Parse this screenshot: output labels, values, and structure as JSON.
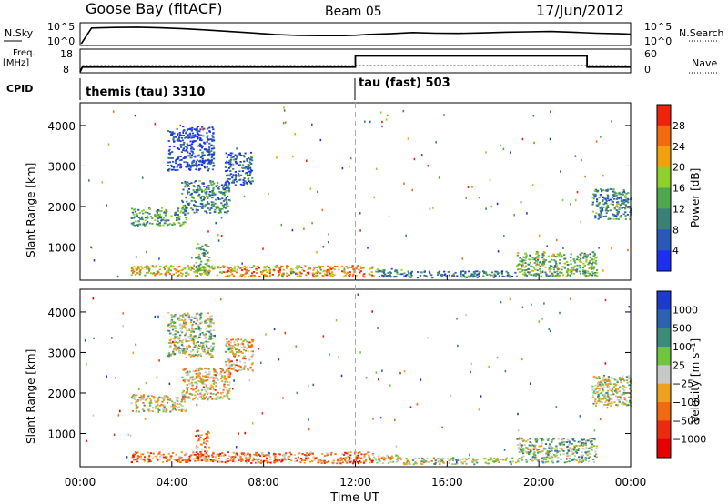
{
  "header": {
    "station": "Goose Bay (fitACF)",
    "beam": "Beam 05",
    "date": "17/Jun/2012"
  },
  "colors": {
    "data_trace": "#000000",
    "cursor_line": "#aaaaaa",
    "speck_grey": "#bfbfbf"
  },
  "chart_data": [
    {
      "type": "line",
      "panel": "noise",
      "ylabel_left": "N.Sky",
      "ylabel_right": "N.Search",
      "left_ticks": [
        "10^5",
        "10^0"
      ],
      "right_ticks": [
        "10^5",
        "10^0"
      ],
      "x_hours": [
        0.05,
        0.5,
        1.5,
        2.5,
        3.5,
        4.5,
        5.5,
        6.5,
        7.5,
        8.5,
        9.5,
        10.5,
        11.5,
        12.0,
        12.5,
        13.5,
        14.5,
        15.5,
        16.5,
        17.5,
        18.5,
        19.5,
        20.5,
        21.5,
        22.5,
        23.5,
        24.0
      ],
      "n_sky_level": [
        0.0,
        0.82,
        0.85,
        0.86,
        0.83,
        0.78,
        0.72,
        0.64,
        0.56,
        0.48,
        0.43,
        0.42,
        0.42,
        0.44,
        0.48,
        0.52,
        0.58,
        0.55,
        0.54,
        0.56,
        0.6,
        0.62,
        0.64,
        0.6,
        0.55,
        0.52,
        0.5
      ]
    },
    {
      "type": "line",
      "panel": "frequency",
      "ylabel_left": "Freq. [MHz]",
      "ylabel_right": "Nave",
      "left_ticks": [
        "18",
        "8"
      ],
      "right_ticks": [
        "60",
        "0"
      ],
      "x_hours": [
        0,
        0.1,
        12.0,
        12.0,
        22.1,
        22.1,
        24
      ],
      "freq_mhz": [
        8,
        10.2,
        10.2,
        15.3,
        15.3,
        10.2,
        10.2
      ],
      "nave_level": 0.28
    },
    {
      "type": "table",
      "panel": "cpid",
      "label": "CPID",
      "segments": [
        {
          "start_hour": 0,
          "text": "themis (tau) 3310"
        },
        {
          "start_hour": 12,
          "text": "tau (fast) 503"
        }
      ]
    },
    {
      "type": "heatmap",
      "panel": "power",
      "ylabel": "Slant Range [km]",
      "y_ticks": [
        1000,
        2000,
        3000,
        4000
      ],
      "ylim": [
        180,
        4560
      ],
      "xlim_hours": [
        0,
        24
      ],
      "colorbar_title": "Power [dB]",
      "colorbar_ticks": [
        "4",
        "8",
        "12",
        "16",
        "20",
        "24",
        "28"
      ],
      "colorbar_colors": [
        "#1c2ff0",
        "#2a58b8",
        "#3a7f78",
        "#4fa84e",
        "#8fd12a",
        "#f1a10c",
        "#f26b0d",
        "#f0220a"
      ],
      "echo_regions": [
        {
          "x0": 2.2,
          "x1": 6.2,
          "y0": 310,
          "y1": 560,
          "value": 0.62
        },
        {
          "x0": 6.2,
          "x1": 12.8,
          "y0": 280,
          "y1": 560,
          "value": 0.72
        },
        {
          "x0": 12.8,
          "x1": 14.0,
          "y0": 280,
          "y1": 480,
          "value": 0.35
        },
        {
          "x0": 14.0,
          "x1": 19.0,
          "y0": 260,
          "y1": 420,
          "value": 0.25
        },
        {
          "x0": 19.0,
          "x1": 22.5,
          "y0": 300,
          "y1": 900,
          "value": 0.45
        },
        {
          "x0": 5.0,
          "x1": 5.6,
          "y0": 300,
          "y1": 1100,
          "value": 0.45
        },
        {
          "x0": 2.2,
          "x1": 4.6,
          "y0": 1550,
          "y1": 1980,
          "value": 0.38
        },
        {
          "x0": 4.4,
          "x1": 6.5,
          "y0": 1850,
          "y1": 2650,
          "value": 0.3
        },
        {
          "x0": 6.3,
          "x1": 7.5,
          "y0": 2550,
          "y1": 3350,
          "value": 0.2
        },
        {
          "x0": 3.8,
          "x1": 5.8,
          "y0": 2900,
          "y1": 4000,
          "value": 0.12
        },
        {
          "x0": 22.3,
          "x1": 24.0,
          "y0": 1700,
          "y1": 2450,
          "value": 0.32
        }
      ]
    },
    {
      "type": "heatmap",
      "panel": "velocity",
      "ylabel": "Slant Range [km]",
      "y_ticks": [
        1000,
        2000,
        3000,
        4000
      ],
      "ylim": [
        180,
        4560
      ],
      "xlim_hours": [
        0,
        24
      ],
      "x_tick_labels": [
        "00:00",
        "04:00",
        "08:00",
        "12:00",
        "16:00",
        "20:00",
        "00:00"
      ],
      "xlabel": "Time UT",
      "colorbar_title": "Velocity [m s⁻¹]",
      "colorbar_ticks": [
        "1000",
        "500",
        "100",
        "25",
        "−25",
        "−100",
        "−500",
        "−1000"
      ],
      "colorbar_colors": [
        "#1c3ad0",
        "#2c62b0",
        "#3c8a78",
        "#70c440",
        "#c8c8c8",
        "#f0a020",
        "#f06a10",
        "#ec2a10",
        "#e60000"
      ],
      "echo_regions": [
        {
          "x0": 2.2,
          "x1": 6.2,
          "y0": 310,
          "y1": 560,
          "value": 0.72
        },
        {
          "x0": 6.2,
          "x1": 12.8,
          "y0": 280,
          "y1": 560,
          "value": 0.7
        },
        {
          "x0": 12.8,
          "x1": 14.0,
          "y0": 280,
          "y1": 480,
          "value": 0.55
        },
        {
          "x0": 14.0,
          "x1": 19.0,
          "y0": 260,
          "y1": 420,
          "value": 0.48
        },
        {
          "x0": 19.0,
          "x1": 22.5,
          "y0": 300,
          "y1": 900,
          "value": 0.4
        },
        {
          "x0": 5.0,
          "x1": 5.6,
          "y0": 300,
          "y1": 1100,
          "value": 0.7
        },
        {
          "x0": 2.2,
          "x1": 4.6,
          "y0": 1550,
          "y1": 1980,
          "value": 0.5
        },
        {
          "x0": 4.4,
          "x1": 6.5,
          "y0": 1850,
          "y1": 2650,
          "value": 0.58
        },
        {
          "x0": 6.3,
          "x1": 7.5,
          "y0": 2550,
          "y1": 3350,
          "value": 0.6
        },
        {
          "x0": 3.8,
          "x1": 5.8,
          "y0": 2900,
          "y1": 4000,
          "value": 0.45
        },
        {
          "x0": 22.3,
          "x1": 24.0,
          "y0": 1700,
          "y1": 2450,
          "value": 0.48
        }
      ]
    }
  ]
}
